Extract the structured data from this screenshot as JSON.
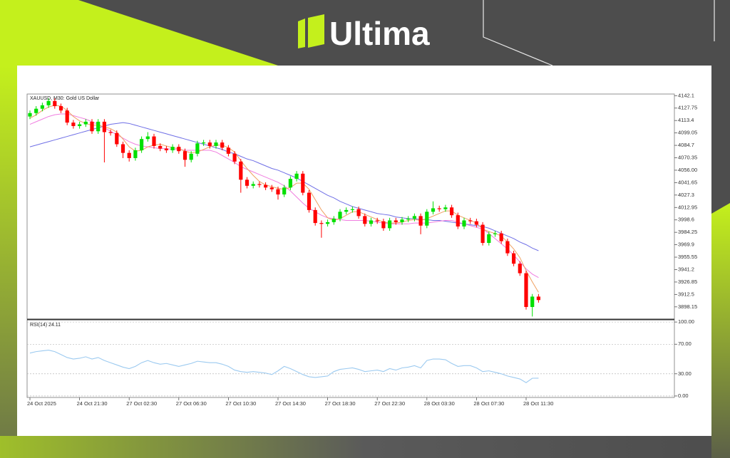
{
  "brand": "Ultima",
  "chart_data": [
    {
      "type": "candlestick",
      "title": "XAUUSD, M30:  Gold US Dollar",
      "up_color": "#00e000",
      "down_color": "#ff0000",
      "ylim": [
        3884,
        4144
      ],
      "yticks": [
        4142.1,
        4127.75,
        4113.4,
        4099.05,
        4084.7,
        4070.35,
        {
          "value": 4056,
          "label": "4056.00"
        },
        4041.65,
        4027.3,
        4012.95,
        3998.6,
        3984.25,
        3969.9,
        3955.55,
        3941.2,
        3926.85,
        3912.5,
        3898.15
      ],
      "open": [
        4118,
        4122,
        4127,
        4131,
        4136,
        4130,
        4125,
        4111,
        4107,
        4109,
        4112,
        4101,
        4112,
        4100,
        4099,
        4086,
        4076,
        4070,
        4079,
        4092,
        4095,
        4084,
        4081,
        4079,
        4083,
        4078,
        4068,
        4075,
        4087,
        4088,
        4084,
        4088,
        4082,
        4075,
        4066,
        4045,
        4038,
        4040,
        4039,
        4036,
        4034,
        4028,
        4036,
        4046,
        4052,
        4030,
        4010,
        3995,
        3994,
        3996,
        4000,
        4008,
        4010,
        4011,
        4003,
        3994,
        3998,
        3997,
        3989,
        3998,
        3996,
        3999,
        4000,
        4003,
        3992,
        4008,
        4012,
        4011,
        4013,
        4004,
        3991,
        3998,
        3997,
        3993,
        3972,
        3982,
        3983,
        3974,
        3960,
        3948,
        3937,
        3898,
        3910
      ],
      "high": [
        4125,
        4130,
        4134,
        4139,
        4139,
        4133,
        4128,
        4114,
        4112,
        4115,
        4115,
        4115,
        4115,
        4103,
        4102,
        4089,
        4079,
        4082,
        4095,
        4100,
        4098,
        4087,
        4084,
        4086,
        4086,
        4081,
        4078,
        4090,
        4091,
        4091,
        4091,
        4091,
        4085,
        4078,
        4069,
        4048,
        4043,
        4043,
        4042,
        4039,
        4037,
        4039,
        4049,
        4055,
        4055,
        4033,
        4013,
        3998,
        3999,
        4003,
        4011,
        4013,
        4014,
        4014,
        4006,
        4001,
        4001,
        4000,
        4001,
        4001,
        4002,
        4003,
        4006,
        4006,
        4011,
        4020,
        4015,
        4016,
        4016,
        4007,
        4001,
        4001,
        4000,
        3996,
        3985,
        3986,
        3986,
        3977,
        3963,
        3951,
        3940,
        3913,
        3913
      ],
      "low": [
        4115,
        4119,
        4124,
        4128,
        4127,
        4122,
        4108,
        4104,
        4104,
        4106,
        4098,
        4098,
        4065,
        4096,
        4083,
        4070,
        4066,
        4067,
        4076,
        4089,
        4081,
        4078,
        4076,
        4076,
        4075,
        4060,
        4065,
        4072,
        4084,
        4081,
        4081,
        4079,
        4072,
        4063,
        4030,
        4035,
        4035,
        4036,
        4033,
        4031,
        4022,
        4025,
        4033,
        4043,
        4027,
        4007,
        3992,
        3978,
        3991,
        3993,
        3997,
        4005,
        4007,
        4000,
        3991,
        3991,
        3994,
        3986,
        3986,
        3993,
        3993,
        3996,
        3997,
        3982,
        3989,
        4005,
        4008,
        4008,
        4001,
        3988,
        3988,
        3994,
        3990,
        3969,
        3969,
        3979,
        3971,
        3957,
        3945,
        3934,
        3895,
        3887,
        3903
      ],
      "close": [
        4122,
        4127,
        4131,
        4136,
        4130,
        4125,
        4111,
        4107,
        4109,
        4112,
        4101,
        4112,
        4100,
        4099,
        4086,
        4076,
        4070,
        4079,
        4092,
        4095,
        4084,
        4081,
        4079,
        4083,
        4078,
        4068,
        4075,
        4087,
        4088,
        4084,
        4088,
        4082,
        4075,
        4066,
        4045,
        4038,
        4040,
        4039,
        4036,
        4034,
        4028,
        4036,
        4046,
        4052,
        4030,
        4010,
        3995,
        3994,
        3996,
        4000,
        4008,
        4010,
        4011,
        4003,
        3994,
        3998,
        3997,
        3989,
        3998,
        3996,
        3999,
        4000,
        4003,
        3992,
        4008,
        4012,
        4011,
        4013,
        4004,
        3991,
        3998,
        3997,
        3993,
        3972,
        3982,
        3983,
        3974,
        3960,
        3948,
        3937,
        3898,
        3910,
        3906
      ],
      "lines": [
        {
          "color": "#6f6fe6",
          "values": [
            4083,
            4085,
            4087,
            4089,
            4091,
            4093,
            4095,
            4097,
            4099,
            4101,
            4103,
            4105,
            4107,
            4109,
            4110,
            4111,
            4110,
            4108,
            4106,
            4104,
            4102,
            4100,
            4098,
            4096,
            4094,
            4092,
            4090,
            4088,
            4086,
            4084,
            4082,
            4080,
            4077,
            4075,
            4072,
            4069,
            4067,
            4064,
            4061,
            4058,
            4056,
            4053,
            4050,
            4047,
            4043,
            4039,
            4035,
            4031,
            4027,
            4024,
            4020,
            4017,
            4014,
            4012,
            4010,
            4008,
            4006,
            4005,
            4004,
            4002,
            4001,
            4000,
            4000,
            3999,
            3999,
            3998,
            3998,
            3997,
            3996,
            3995,
            3994,
            3993,
            3992,
            3991,
            3989,
            3986,
            3983,
            3980,
            3977,
            3973,
            3970,
            3966,
            3963
          ]
        },
        {
          "color": "#f07ee0",
          "values": [
            4109,
            4112,
            4115,
            4118,
            4120,
            4121,
            4121,
            4119,
            4117,
            4115,
            4112,
            4109,
            4105,
            4101,
            4097,
            4093,
            4089,
            4086,
            4084,
            4083,
            4082,
            4081,
            4081,
            4080,
            4080,
            4079,
            4079,
            4079,
            4079,
            4079,
            4077,
            4073,
            4069,
            4065,
            4060,
            4057,
            4054,
            4051,
            4048,
            4045,
            4042,
            4038,
            4032,
            4025,
            4018,
            4012,
            4008,
            4004,
            4001,
            4000,
            3999,
            3998,
            3998,
            3998,
            3998,
            3997,
            3996,
            3995,
            3994,
            3994,
            3994,
            3994,
            3995,
            3995,
            3995,
            3996,
            3997,
            3998,
            3998,
            3996,
            3994,
            3992,
            3990,
            3988,
            3983,
            3977,
            3971,
            3965,
            3958,
            3950,
            3942,
            3936,
            3932
          ]
        },
        {
          "color": "#f0a060",
          "values": [
            4116,
            4120,
            4125,
            4129,
            4131,
            4130,
            4125,
            4118,
            4113,
            4110,
            4108,
            4108,
            4106,
            4104,
            4100,
            4092,
            4083,
            4078,
            4079,
            4083,
            4085,
            4086,
            4084,
            4082,
            4081,
            4078,
            4076,
            4077,
            4080,
            4083,
            4085,
            4085,
            4082,
            4077,
            4067,
            4058,
            4050,
            4043,
            4039,
            4037,
            4035,
            4034,
            4036,
            4041,
            4041,
            4034,
            4022,
            4010,
            4001,
            3998,
            4000,
            4004,
            4008,
            4008,
            4005,
            4002,
            3999,
            3996,
            3995,
            3995,
            3996,
            3998,
            3999,
            3998,
            4000,
            4003,
            4006,
            4009,
            4009,
            4004,
            4001,
            3998,
            3995,
            3988,
            3985,
            3983,
            3980,
            3973,
            3965,
            3955,
            3940,
            3927,
            3915
          ]
        }
      ]
    },
    {
      "type": "line",
      "title": "RSI(14) 24.11",
      "color": "#9ccaf0",
      "ylim": [
        -2,
        103
      ],
      "yticks": [
        {
          "value": 100,
          "label": "100.00"
        },
        {
          "value": 70,
          "label": "70.00"
        },
        {
          "value": 30,
          "label": "30.00"
        },
        {
          "value": 0,
          "label": "0.00"
        }
      ],
      "categories": [
        "24 Oct 2025",
        null,
        null,
        null,
        null,
        null,
        null,
        null,
        "24 Oct 21:30",
        null,
        null,
        null,
        null,
        null,
        null,
        null,
        "27 Oct 02:30",
        null,
        null,
        null,
        null,
        null,
        null,
        null,
        "27 Oct 06:30",
        null,
        null,
        null,
        null,
        null,
        null,
        null,
        "27 Oct 10:30",
        null,
        null,
        null,
        null,
        null,
        null,
        null,
        "27 Oct 14:30",
        null,
        null,
        null,
        null,
        null,
        null,
        null,
        "27 Oct 18:30",
        null,
        null,
        null,
        null,
        null,
        null,
        null,
        "27 Oct 22:30",
        null,
        null,
        null,
        null,
        null,
        null,
        null,
        "28 Oct 03:30",
        null,
        null,
        null,
        null,
        null,
        null,
        null,
        "28 Oct 07:30",
        null,
        null,
        null,
        null,
        null,
        null,
        null,
        "28 Oct 11:30",
        null,
        null
      ],
      "values": [
        58,
        60,
        61,
        62,
        60,
        56,
        52,
        50,
        51,
        53,
        50,
        52,
        48,
        45,
        42,
        39,
        37,
        40,
        45,
        48,
        45,
        43,
        44,
        42,
        40,
        42,
        44,
        47,
        46,
        45,
        45,
        43,
        40,
        35,
        33,
        32,
        33,
        32,
        31,
        29,
        34,
        40,
        37,
        33,
        29,
        26,
        25,
        26,
        27,
        33,
        36,
        37,
        38,
        36,
        33,
        34,
        35,
        33,
        37,
        35,
        38,
        39,
        41,
        38,
        48,
        50,
        50,
        49,
        44,
        40,
        41,
        41,
        38,
        33,
        34,
        32,
        30,
        27,
        25,
        23,
        18,
        24,
        24.11
      ]
    }
  ]
}
